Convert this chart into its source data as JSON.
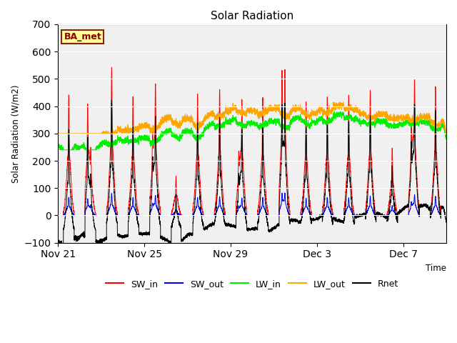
{
  "title": "Solar Radiation",
  "ylabel": "Solar Radiation (W/m2)",
  "xlabel": "Time",
  "ylim": [
    -100,
    700
  ],
  "yticks": [
    -100,
    0,
    100,
    200,
    300,
    400,
    500,
    600,
    700
  ],
  "xtick_labels": [
    "Nov 21",
    "Nov 25",
    "Nov 29",
    "Dec 3",
    "Dec 7"
  ],
  "xtick_positions": [
    0,
    4,
    8,
    12,
    16
  ],
  "bg_color": "#e8e8e8",
  "plot_bg_color": "#f0f0f0",
  "colors": {
    "SW_in": "#ff0000",
    "SW_out": "#0000ff",
    "LW_in": "#00ee00",
    "LW_out": "#ffa500",
    "Rnet": "#000000"
  },
  "annotation": "BA_met",
  "annotation_bbox": {
    "facecolor": "#ffff99",
    "edgecolor": "#8b2500",
    "linewidth": 1.5
  },
  "n_days": 18,
  "points_per_day": 288
}
